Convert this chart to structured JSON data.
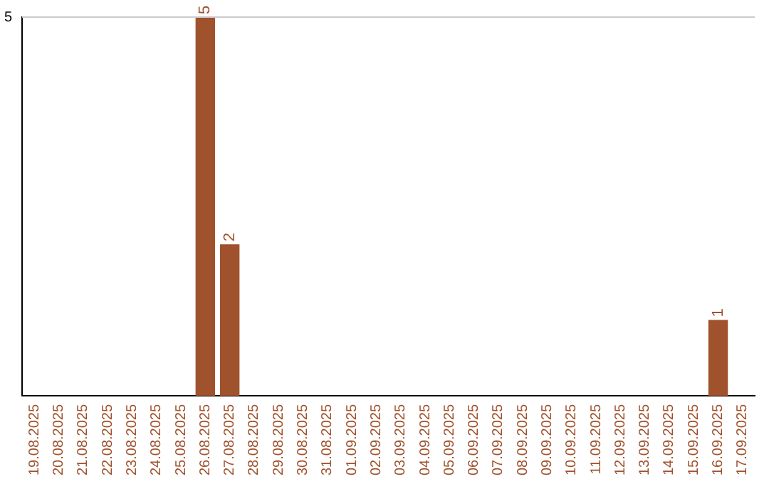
{
  "chart_data": {
    "type": "bar",
    "categories": [
      "19.08.2025",
      "20.08.2025",
      "21.08.2025",
      "22.08.2025",
      "23.08.2025",
      "24.08.2025",
      "25.08.2025",
      "26.08.2025",
      "27.08.2025",
      "28.08.2025",
      "29.08.2025",
      "30.08.2025",
      "31.08.2025",
      "01.09.2025",
      "02.09.2025",
      "03.09.2025",
      "04.09.2025",
      "05.09.2025",
      "06.09.2025",
      "07.09.2025",
      "08.09.2025",
      "09.09.2025",
      "10.09.2025",
      "11.09.2025",
      "12.09.2025",
      "13.09.2025",
      "14.09.2025",
      "15.09.2025",
      "16.09.2025",
      "17.09.2025"
    ],
    "values": [
      0,
      0,
      0,
      0,
      0,
      0,
      0,
      5,
      2,
      0,
      0,
      0,
      0,
      0,
      0,
      0,
      0,
      0,
      0,
      0,
      0,
      0,
      0,
      0,
      0,
      0,
      0,
      0,
      1,
      0
    ],
    "value_labels": [
      null,
      null,
      null,
      null,
      null,
      null,
      null,
      "5",
      "2",
      null,
      null,
      null,
      null,
      null,
      null,
      null,
      null,
      null,
      null,
      null,
      null,
      null,
      null,
      null,
      null,
      null,
      null,
      null,
      "1",
      null
    ],
    "color": "#a0522d",
    "ylim": [
      0,
      5
    ],
    "yticks": [
      5
    ],
    "ref_lines": [
      {
        "axis": "y",
        "value": 5,
        "color": "#cccccc"
      }
    ],
    "legend": false
  }
}
